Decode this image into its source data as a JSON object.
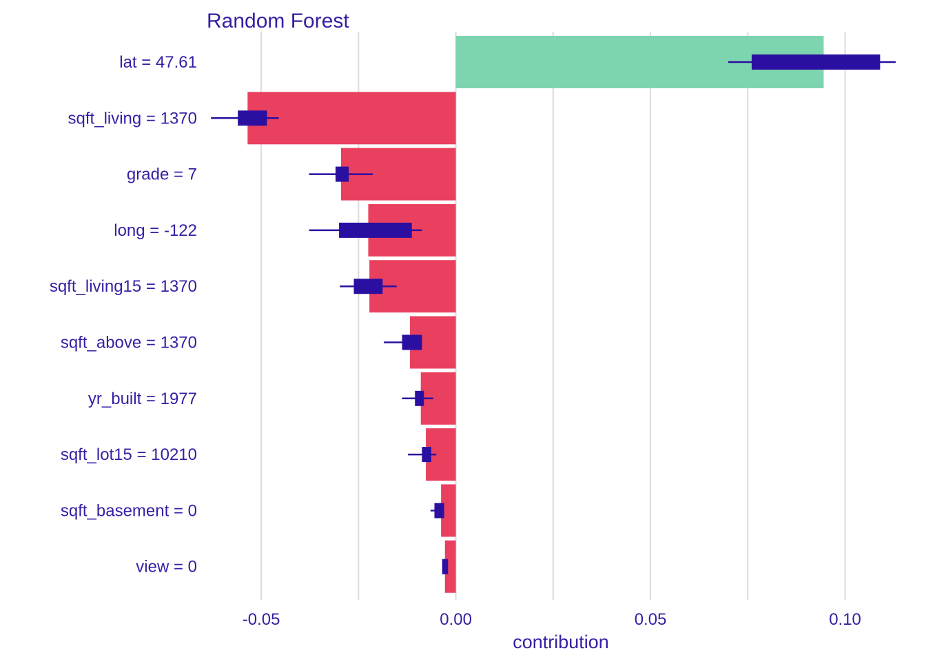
{
  "chart_data": {
    "type": "bar",
    "orientation": "horizontal",
    "title": "Random Forest",
    "xlabel": "contribution",
    "ylabel": "",
    "xlim": [
      -0.064,
      0.113
    ],
    "xticks": [
      -0.05,
      0.0,
      0.05,
      0.1
    ],
    "xtick_labels": [
      "-0.05",
      "0.00",
      "0.05",
      "0.10"
    ],
    "grid": true,
    "legend": "none",
    "colors": {
      "positive": "#7dd5b0",
      "negative": "#ea4060",
      "boxplot": "#2a0fa0",
      "text": "#371ea3",
      "grid": "#dcdcdc"
    },
    "categories": [
      "lat = 47.61",
      "sqft_living = 1370",
      "grade = 7",
      "long = -122",
      "sqft_living15 = 1370",
      "sqft_above = 1370",
      "yr_built = 1977",
      "sqft_lot15 = 10210",
      "sqft_basement = 0",
      "view = 0"
    ],
    "values": [
      0.0945,
      -0.0535,
      -0.0295,
      -0.0225,
      -0.0222,
      -0.0118,
      -0.009,
      -0.0077,
      -0.0038,
      -0.0028
    ],
    "boxplots": [
      {
        "min": 0.07,
        "q1": 0.076,
        "q3": 0.109,
        "max": 0.113
      },
      {
        "min": -0.0629,
        "q1": -0.056,
        "q3": -0.0485,
        "max": -0.0455
      },
      {
        "min": -0.0377,
        "q1": -0.0309,
        "q3": -0.0275,
        "max": -0.0213
      },
      {
        "min": -0.0377,
        "q1": -0.03,
        "q3": -0.0113,
        "max": -0.0087
      },
      {
        "min": -0.0298,
        "q1": -0.0262,
        "q3": -0.0188,
        "max": -0.0152
      },
      {
        "min": -0.0185,
        "q1": -0.0138,
        "q3": -0.0087,
        "max": -0.0087
      },
      {
        "min": -0.0138,
        "q1": -0.0105,
        "q3": -0.0082,
        "max": -0.0058
      },
      {
        "min": -0.0123,
        "q1": -0.0087,
        "q3": -0.0063,
        "max": -0.005
      },
      {
        "min": -0.0065,
        "q1": -0.0055,
        "q3": -0.003,
        "max": -0.003
      },
      {
        "min": -0.0035,
        "q1": -0.0035,
        "q3": -0.002,
        "max": -0.002
      }
    ]
  }
}
